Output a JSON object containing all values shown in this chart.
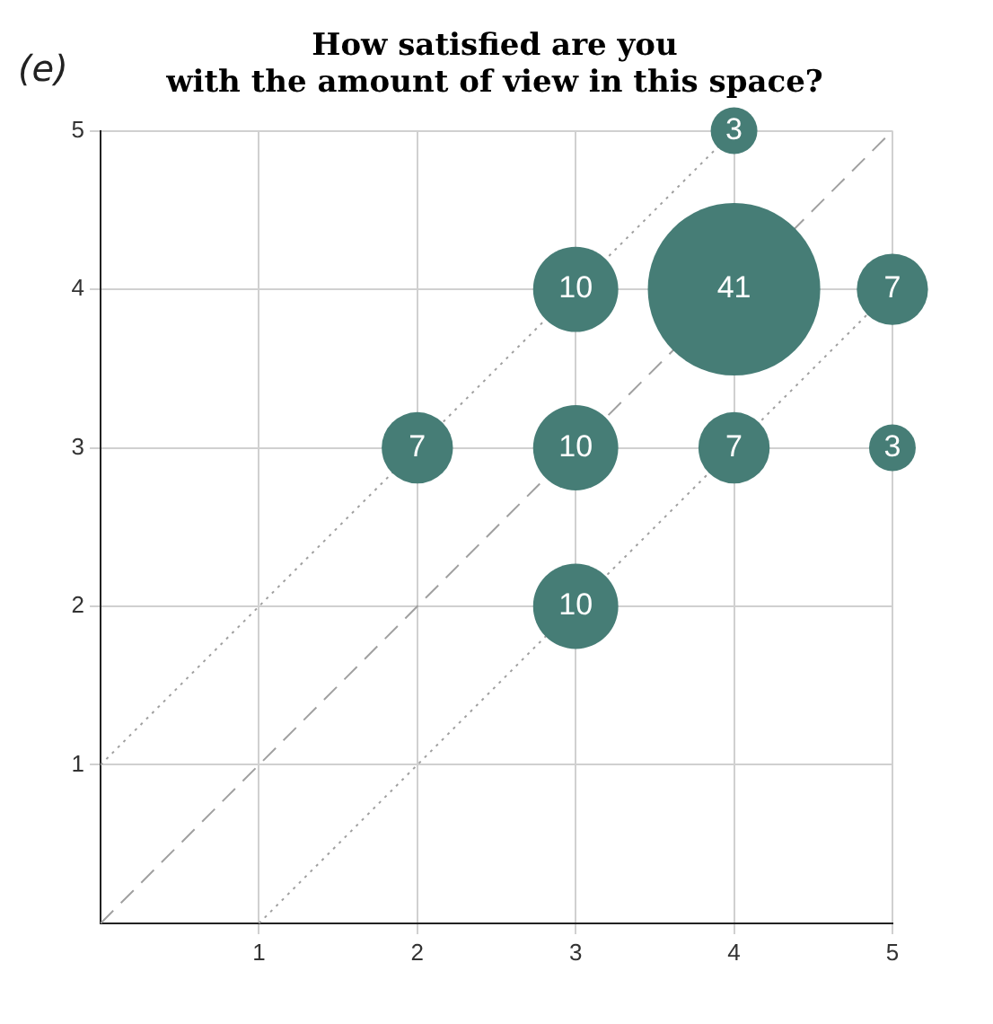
{
  "chart_data": {
    "type": "bubble",
    "title": "How satisfied are you\nwith the amount of view in this space?",
    "annotations": [
      "(e)"
    ],
    "xlim": [
      0,
      5
    ],
    "ylim": [
      0,
      5
    ],
    "xticks": [
      1,
      2,
      3,
      4,
      5
    ],
    "yticks": [
      1,
      2,
      3,
      4,
      5
    ],
    "grid": true,
    "series": [
      {
        "type": "line",
        "x": [
          0,
          5
        ],
        "values": [
          0,
          5
        ],
        "color": "#a0a0a0",
        "line_style": "dashed"
      },
      {
        "type": "line",
        "x": [
          0,
          4
        ],
        "values": [
          1,
          5
        ],
        "color": "#a0a0a0",
        "line_style": "dotted"
      },
      {
        "type": "line",
        "x": [
          1,
          5
        ],
        "values": [
          0,
          4
        ],
        "color": "#a0a0a0",
        "line_style": "dotted"
      },
      {
        "color": "#467d76",
        "x": [
          4,
          3,
          4,
          5,
          2,
          3,
          4,
          5,
          3
        ],
        "values": [
          5,
          4,
          4,
          4,
          3,
          3,
          3,
          3,
          2
        ],
        "sizes": [
          3,
          10,
          41,
          7,
          7,
          10,
          7,
          3,
          10
        ],
        "value_labels": [
          "3",
          "10",
          "41",
          "7",
          "7",
          "10",
          "7",
          "3",
          "10"
        ]
      }
    ]
  }
}
